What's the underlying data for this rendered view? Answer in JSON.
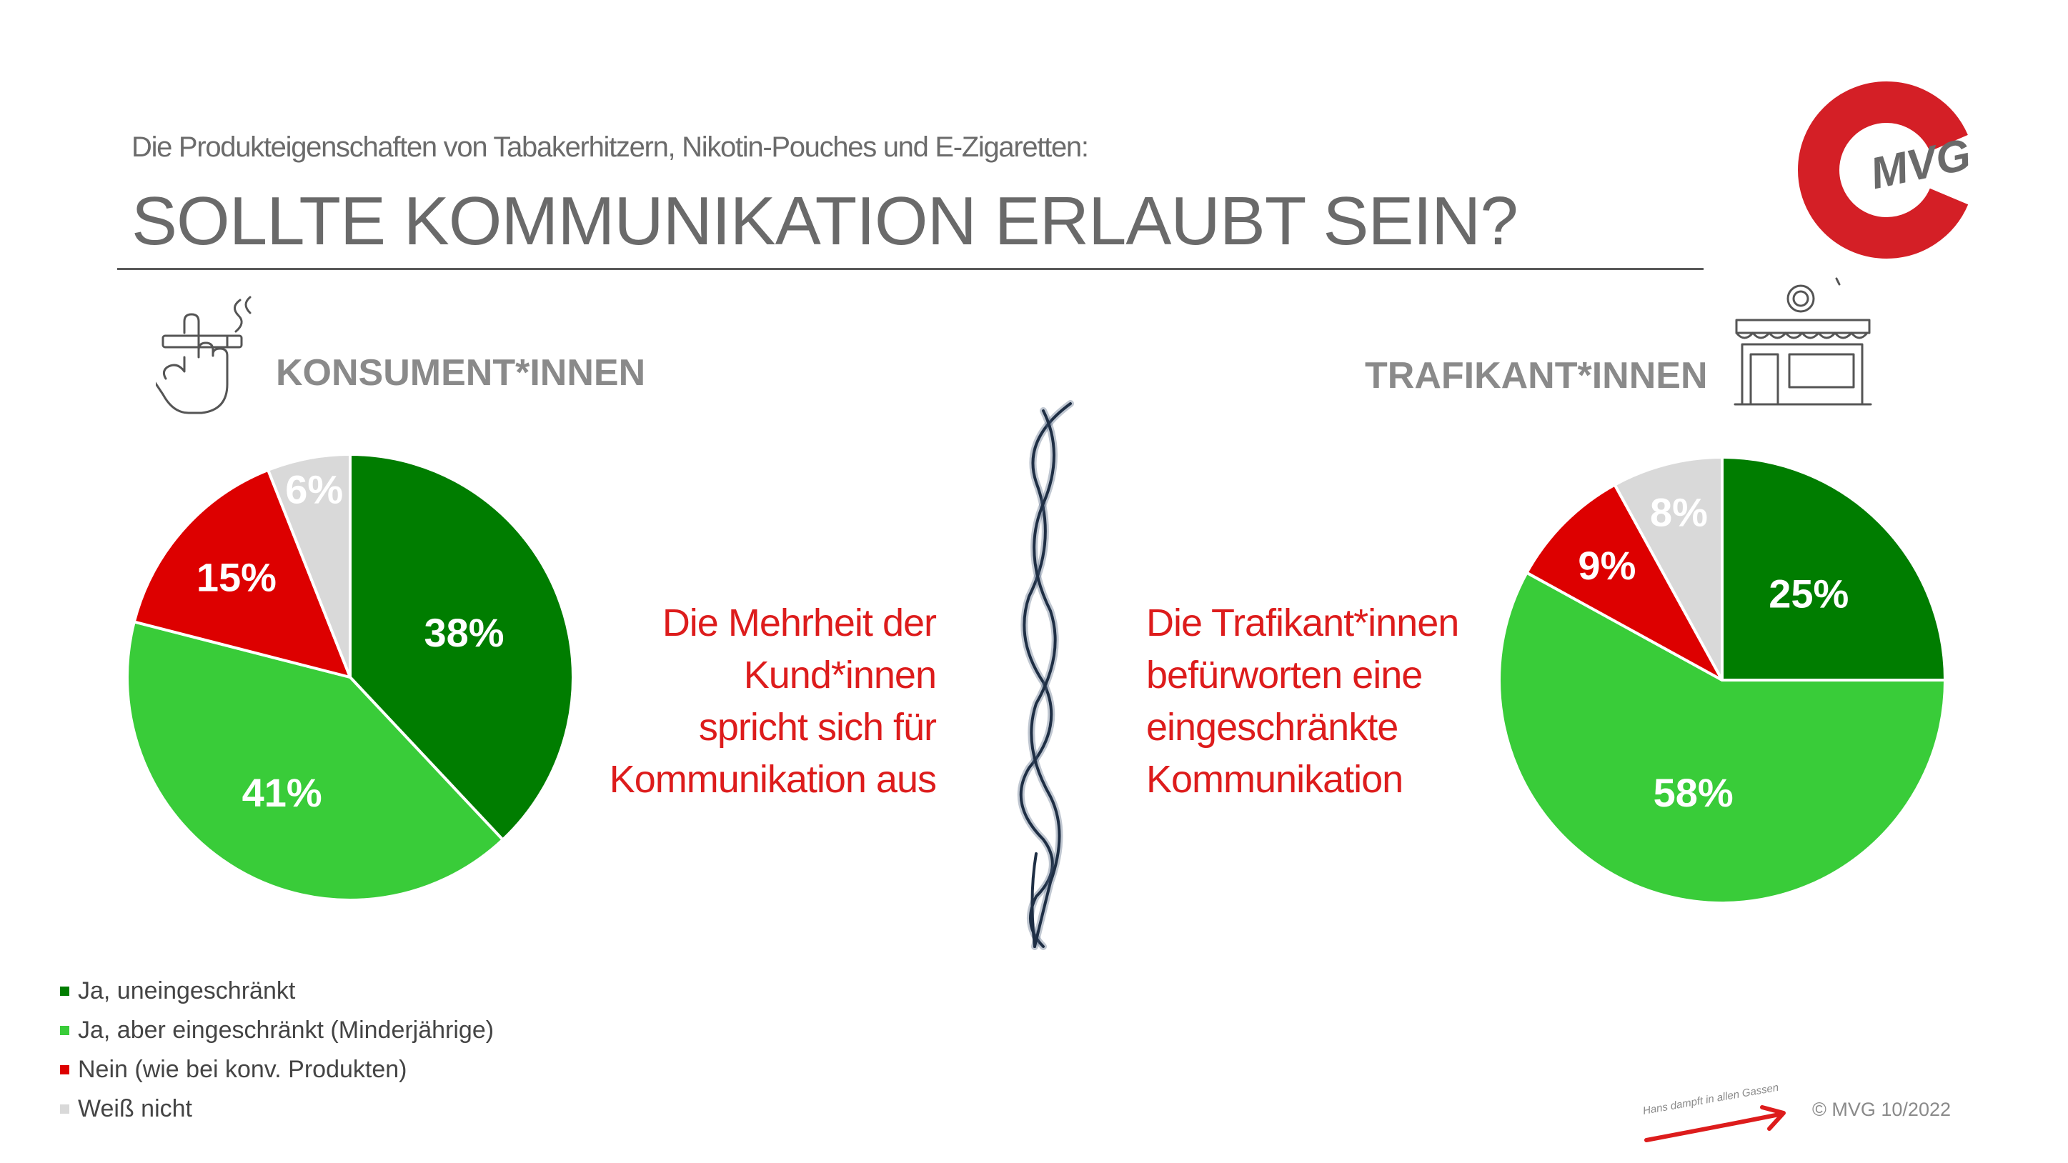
{
  "header": {
    "subtitle": "Die Produkteigenschaften von Tabakerhitzern, Nikotin-Pouches und E-Zigaretten:",
    "title": "SOLLTE KOMMUNIKATION ERLAUBT SEIN?"
  },
  "logo": {
    "text": "MVG",
    "color": "#d41f26"
  },
  "sections": {
    "left_label": "KONSUMENT*INNEN",
    "right_label": "TRAFIKANT*INNEN"
  },
  "messages": {
    "left": [
      "Die Mehrheit der",
      "Kund*innen",
      "spricht sich für",
      "Kommunikation aus"
    ],
    "right": [
      "Die Trafikant*innen",
      "befürworten eine",
      "eingeschränkte",
      "Kommunikation"
    ]
  },
  "colors": {
    "dark_green": "#007d00",
    "light_green": "#39cc39",
    "red": "#dd0000",
    "grey": "#d9d9d9",
    "message_red": "#dd1c1c"
  },
  "icons": {
    "left": "hand-cigarette-icon",
    "right": "shop-icon",
    "divider": "twisted-rope-icon",
    "signature": "red-arrow-signature"
  },
  "chart_data": [
    {
      "type": "pie",
      "title": "KONSUMENT*INNEN",
      "categories": [
        "Ja, uneingeschränkt",
        "Ja, aber eingeschränkt (Minderjährige)",
        "Nein (wie bei konv. Produkten)",
        "Weiß nicht"
      ],
      "values": [
        38,
        41,
        15,
        6
      ],
      "labels": [
        "38%",
        "41%",
        "15%",
        "6%"
      ],
      "colors": [
        "#007d00",
        "#39cc39",
        "#dd0000",
        "#d9d9d9"
      ]
    },
    {
      "type": "pie",
      "title": "TRAFIKANT*INNEN",
      "categories": [
        "Ja, uneingeschränkt",
        "Ja, aber eingeschränkt (Minderjährige)",
        "Nein (wie bei konv. Produkten)",
        "Weiß nicht"
      ],
      "values": [
        25,
        58,
        9,
        8
      ],
      "labels": [
        "25%",
        "58%",
        "9%",
        "8%"
      ],
      "colors": [
        "#007d00",
        "#39cc39",
        "#dd0000",
        "#d9d9d9"
      ]
    }
  ],
  "legend": [
    {
      "label": "Ja, uneingeschränkt",
      "color": "#007d00"
    },
    {
      "label": "Ja, aber eingeschränkt (Minderjährige)",
      "color": "#39cc39"
    },
    {
      "label": "Nein (wie bei konv. Produkten)",
      "color": "#dd0000"
    },
    {
      "label": "Weiß nicht",
      "color": "#d9d9d9"
    }
  ],
  "footer": {
    "tagline": "Hans dampft in allen Gassen",
    "copyright": "© MVG 10/2022"
  }
}
